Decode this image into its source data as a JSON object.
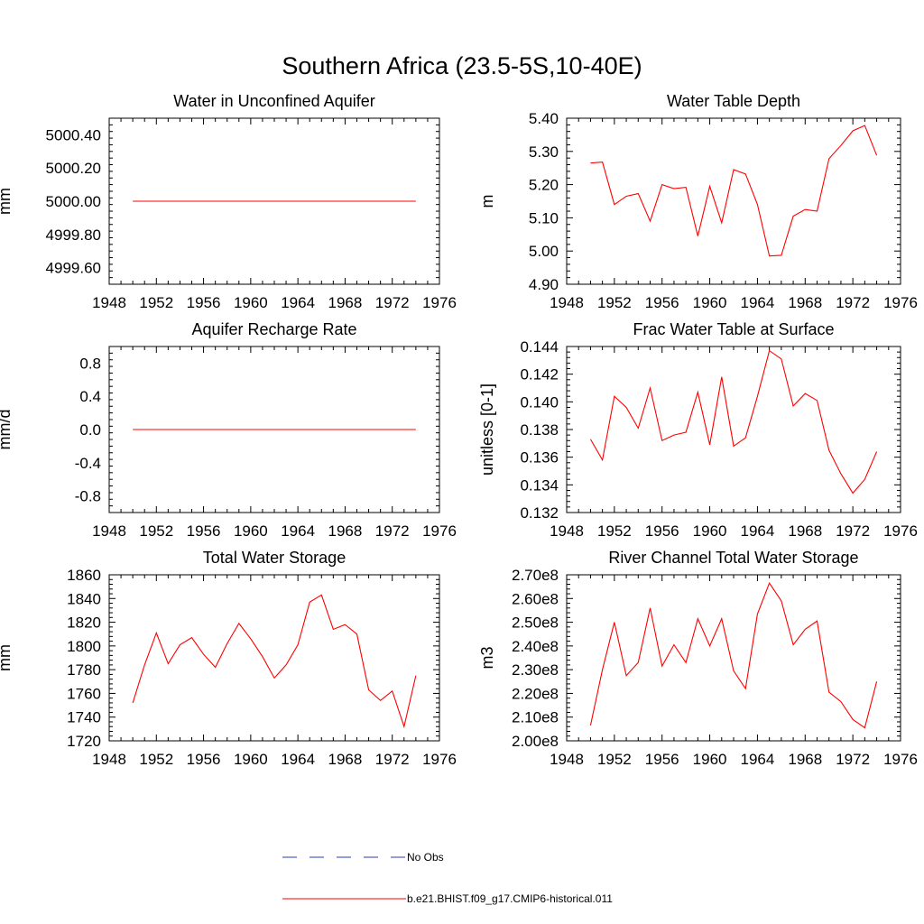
{
  "figure": {
    "title": "Southern Africa (23.5-5S,10-40E)"
  },
  "colors": {
    "model_line": "#ff0000",
    "obs_line": "#2b3bb0",
    "axis": "#000000",
    "background": "#ffffff"
  },
  "legend": {
    "position": "bottom-center",
    "entries": [
      {
        "label": "No Obs",
        "style": "dashed",
        "color": "#2b3bb0"
      },
      {
        "label": "b.e21.BHIST.f09_g17.CMIP6-historical.011",
        "style": "solid",
        "color": "#ff0000"
      }
    ]
  },
  "chart_data": [
    {
      "type": "line",
      "title": "Water in Unconfined Aquifer",
      "ylabel": "mm",
      "xlim": [
        1948,
        1976
      ],
      "xticks": [
        1948,
        1952,
        1956,
        1960,
        1964,
        1968,
        1972,
        1976
      ],
      "ylim": [
        4999.5,
        5000.5
      ],
      "yticks": [
        4999.6,
        4999.8,
        5000.0,
        5000.2,
        5000.4
      ],
      "ytick_labels": [
        "4999.60",
        "4999.80",
        "5000.00",
        "5000.20",
        "5000.40"
      ],
      "x": [
        1950,
        1951,
        1952,
        1953,
        1954,
        1955,
        1956,
        1957,
        1958,
        1959,
        1960,
        1961,
        1962,
        1963,
        1964,
        1965,
        1966,
        1967,
        1968,
        1969,
        1970,
        1971,
        1972,
        1973,
        1974
      ],
      "series": [
        {
          "name": "b.e21.BHIST.f09_g17.CMIP6-historical.011",
          "values": [
            5000.0,
            5000.0,
            5000.0,
            5000.0,
            5000.0,
            5000.0,
            5000.0,
            5000.0,
            5000.0,
            5000.0,
            5000.0,
            5000.0,
            5000.0,
            5000.0,
            5000.0,
            5000.0,
            5000.0,
            5000.0,
            5000.0,
            5000.0,
            5000.0,
            5000.0,
            5000.0,
            5000.0,
            5000.0
          ]
        }
      ]
    },
    {
      "type": "line",
      "title": "Water Table Depth",
      "ylabel": "m",
      "xlim": [
        1948,
        1976
      ],
      "xticks": [
        1948,
        1952,
        1956,
        1960,
        1964,
        1968,
        1972,
        1976
      ],
      "ylim": [
        4.9,
        5.4
      ],
      "yticks": [
        4.9,
        5.0,
        5.1,
        5.2,
        5.3,
        5.4
      ],
      "ytick_labels": [
        "4.90",
        "5.00",
        "5.10",
        "5.20",
        "5.30",
        "5.40"
      ],
      "x": [
        1950,
        1951,
        1952,
        1953,
        1954,
        1955,
        1956,
        1957,
        1958,
        1959,
        1960,
        1961,
        1962,
        1963,
        1964,
        1965,
        1966,
        1967,
        1968,
        1969,
        1970,
        1971,
        1972,
        1973,
        1974
      ],
      "series": [
        {
          "name": "b.e21.BHIST.f09_g17.CMIP6-historical.011",
          "values": [
            5.265,
            5.268,
            5.14,
            5.165,
            5.173,
            5.09,
            5.2,
            5.188,
            5.192,
            5.045,
            5.195,
            5.085,
            5.245,
            5.232,
            5.14,
            4.985,
            4.987,
            5.105,
            5.125,
            5.12,
            5.278,
            5.318,
            5.362,
            5.378,
            5.288
          ]
        }
      ]
    },
    {
      "type": "line",
      "title": "Aquifer Recharge Rate",
      "ylabel": "mm/d",
      "xlim": [
        1948,
        1976
      ],
      "xticks": [
        1948,
        1952,
        1956,
        1960,
        1964,
        1968,
        1972,
        1976
      ],
      "ylim": [
        -1.0,
        1.0
      ],
      "yticks": [
        -0.8,
        -0.4,
        0.0,
        0.4,
        0.8
      ],
      "ytick_labels": [
        "-0.8",
        "-0.4",
        "0.0",
        "0.4",
        "0.8"
      ],
      "x": [
        1950,
        1951,
        1952,
        1953,
        1954,
        1955,
        1956,
        1957,
        1958,
        1959,
        1960,
        1961,
        1962,
        1963,
        1964,
        1965,
        1966,
        1967,
        1968,
        1969,
        1970,
        1971,
        1972,
        1973,
        1974
      ],
      "series": [
        {
          "name": "b.e21.BHIST.f09_g17.CMIP6-historical.011",
          "values": [
            0,
            0,
            0,
            0,
            0,
            0,
            0,
            0,
            0,
            0,
            0,
            0,
            0,
            0,
            0,
            0,
            0,
            0,
            0,
            0,
            0,
            0,
            0,
            0,
            0
          ]
        }
      ]
    },
    {
      "type": "line",
      "title": "Frac Water Table at Surface",
      "ylabel": "unitless [0-1]",
      "xlim": [
        1948,
        1976
      ],
      "xticks": [
        1948,
        1952,
        1956,
        1960,
        1964,
        1968,
        1972,
        1976
      ],
      "ylim": [
        0.132,
        0.144
      ],
      "yticks": [
        0.132,
        0.134,
        0.136,
        0.138,
        0.14,
        0.142,
        0.144
      ],
      "ytick_labels": [
        "0.132",
        "0.134",
        "0.136",
        "0.138",
        "0.140",
        "0.142",
        "0.144"
      ],
      "x": [
        1950,
        1951,
        1952,
        1953,
        1954,
        1955,
        1956,
        1957,
        1958,
        1959,
        1960,
        1961,
        1962,
        1963,
        1964,
        1965,
        1966,
        1967,
        1968,
        1969,
        1970,
        1971,
        1972,
        1973,
        1974
      ],
      "series": [
        {
          "name": "b.e21.BHIST.f09_g17.CMIP6-historical.011",
          "values": [
            0.1373,
            0.1358,
            0.1404,
            0.1396,
            0.1381,
            0.141,
            0.1372,
            0.1376,
            0.1378,
            0.1407,
            0.1369,
            0.1418,
            0.1368,
            0.1374,
            0.1404,
            0.1437,
            0.1431,
            0.1397,
            0.1406,
            0.1401,
            0.1365,
            0.1348,
            0.1334,
            0.1344,
            0.1364
          ]
        }
      ]
    },
    {
      "type": "line",
      "title": "Total Water Storage",
      "ylabel": "mm",
      "xlim": [
        1948,
        1976
      ],
      "xticks": [
        1948,
        1952,
        1956,
        1960,
        1964,
        1968,
        1972,
        1976
      ],
      "ylim": [
        1720,
        1860
      ],
      "yticks": [
        1720,
        1740,
        1760,
        1780,
        1800,
        1820,
        1840,
        1860
      ],
      "ytick_labels": [
        "1720",
        "1740",
        "1760",
        "1780",
        "1800",
        "1820",
        "1840",
        "1860"
      ],
      "x": [
        1950,
        1951,
        1952,
        1953,
        1954,
        1955,
        1956,
        1957,
        1958,
        1959,
        1960,
        1961,
        1962,
        1963,
        1964,
        1965,
        1966,
        1967,
        1968,
        1969,
        1970,
        1971,
        1972,
        1973,
        1974
      ],
      "series": [
        {
          "name": "b.e21.BHIST.f09_g17.CMIP6-historical.011",
          "values": [
            1752,
            1784,
            1811,
            1785,
            1801,
            1807,
            1793,
            1782,
            1802,
            1819,
            1806,
            1791,
            1773,
            1784,
            1801,
            1837,
            1843,
            1814,
            1818,
            1810,
            1763,
            1754,
            1762,
            1732,
            1775
          ]
        }
      ]
    },
    {
      "type": "line",
      "title": "River Channel Total Water Storage",
      "ylabel": "m3",
      "xlim": [
        1948,
        1976
      ],
      "xticks": [
        1948,
        1952,
        1956,
        1960,
        1964,
        1968,
        1972,
        1976
      ],
      "ylim": [
        200000000,
        270000000
      ],
      "yticks": [
        200000000,
        210000000,
        220000000,
        230000000,
        240000000,
        250000000,
        260000000,
        270000000
      ],
      "ytick_labels": [
        "2.00e8",
        "2.10e8",
        "2.20e8",
        "2.30e8",
        "2.40e8",
        "2.50e8",
        "2.60e8",
        "2.70e8"
      ],
      "x": [
        1950,
        1951,
        1952,
        1953,
        1954,
        1955,
        1956,
        1957,
        1958,
        1959,
        1960,
        1961,
        1962,
        1963,
        1964,
        1965,
        1966,
        1967,
        1968,
        1969,
        1970,
        1971,
        1972,
        1973,
        1974
      ],
      "series": [
        {
          "name": "b.e21.BHIST.f09_g17.CMIP6-historical.011",
          "values": [
            206500000,
            230000000,
            250000000,
            227500000,
            233000000,
            256000000,
            231500000,
            240500000,
            233000000,
            251500000,
            240000000,
            251500000,
            229500000,
            222000000,
            253500000,
            266500000,
            259000000,
            240500000,
            247000000,
            250500000,
            220500000,
            216500000,
            209000000,
            205500000,
            225000000
          ]
        }
      ]
    }
  ]
}
